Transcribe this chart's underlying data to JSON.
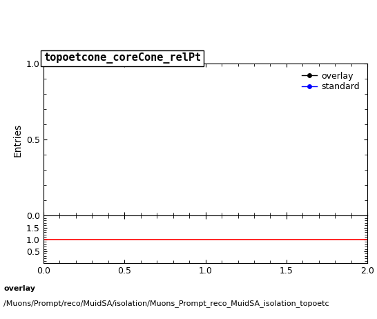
{
  "title": "topoetcone_coreCone_relPt",
  "ylabel_main": "Entries",
  "xlim": [
    0,
    2
  ],
  "ylim_main": [
    0,
    1
  ],
  "ylim_ratio": [
    0,
    2
  ],
  "ratio_yticks": [
    0.5,
    1.0,
    1.5
  ],
  "ratio_xticks": [
    0,
    0.5,
    1,
    1.5,
    2
  ],
  "legend_entries": [
    "overlay",
    "standard"
  ],
  "legend_colors": [
    "#000000",
    "#0000ff"
  ],
  "ratio_line_color": "#ff0000",
  "ratio_line_y": 1.0,
  "main_yticks": [
    0,
    0.5,
    1
  ],
  "footer_line1": "overlay",
  "footer_line2": "/Muons/Prompt/reco/MuidSA/isolation/Muons_Prompt_reco_MuidSA_isolation_topoetc",
  "title_fontsize": 11,
  "axis_fontsize": 10,
  "tick_fontsize": 9,
  "legend_fontsize": 9,
  "footer_fontsize": 8,
  "bg_color": "#ffffff"
}
